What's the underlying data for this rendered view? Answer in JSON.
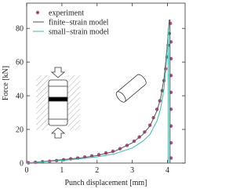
{
  "chart_data": {
    "type": "line",
    "xlabel": "Punch displacement [mm]",
    "ylabel": "Force [kN]",
    "xlim": [
      0,
      4.5
    ],
    "ylim": [
      0,
      95
    ],
    "xticks": [
      0,
      1,
      2,
      3,
      4
    ],
    "yticks": [
      0,
      20,
      40,
      60,
      80
    ],
    "legend": "upper left",
    "series": [
      {
        "name": "experiment",
        "color": "#b0488a",
        "style": "markers",
        "x": [
          0.05,
          0.25,
          0.45,
          0.65,
          0.85,
          1.05,
          1.25,
          1.45,
          1.65,
          1.85,
          2.05,
          2.25,
          2.45,
          2.65,
          2.85,
          3.05,
          3.2,
          3.35,
          3.5,
          3.6,
          3.7,
          3.78,
          3.85,
          3.9,
          3.95,
          3.99,
          4.02,
          4.05,
          4.08,
          4.1,
          4.1,
          4.1,
          4.1,
          4.1,
          4.1,
          4.1,
          4.1
        ],
        "values": [
          0.2,
          0.5,
          0.8,
          1.1,
          1.5,
          2,
          2.5,
          3,
          3.6,
          4.3,
          5,
          6,
          7,
          8.5,
          10.5,
          13,
          15.5,
          18.5,
          22.5,
          27,
          32,
          37,
          43,
          49,
          56,
          63,
          70,
          77,
          83,
          72,
          62,
          52,
          42,
          32,
          22,
          12,
          3
        ]
      },
      {
        "name": "finite−strain model",
        "color": "#555555",
        "style": "line",
        "x": [
          0,
          0.5,
          1,
          1.5,
          2,
          2.5,
          3,
          3.3,
          3.5,
          3.7,
          3.8,
          3.9,
          3.95,
          4.0,
          4.05,
          4.07,
          4.07
        ],
        "values": [
          0,
          1,
          2,
          3,
          4.5,
          7,
          12,
          17,
          22,
          31,
          38,
          50,
          60,
          72,
          85,
          85,
          0
        ]
      },
      {
        "name": "small−strain model",
        "color": "#3cb8a8",
        "style": "line",
        "x": [
          0,
          0.5,
          1,
          1.5,
          2,
          2.5,
          3,
          3.3,
          3.5,
          3.7,
          3.8,
          3.9,
          3.95,
          4.0,
          4.02,
          4.02
        ],
        "values": [
          0,
          0.8,
          1.6,
          2.5,
          3.7,
          5.5,
          9,
          13,
          17,
          25,
          32,
          44,
          55,
          70,
          80,
          0
        ]
      }
    ]
  }
}
